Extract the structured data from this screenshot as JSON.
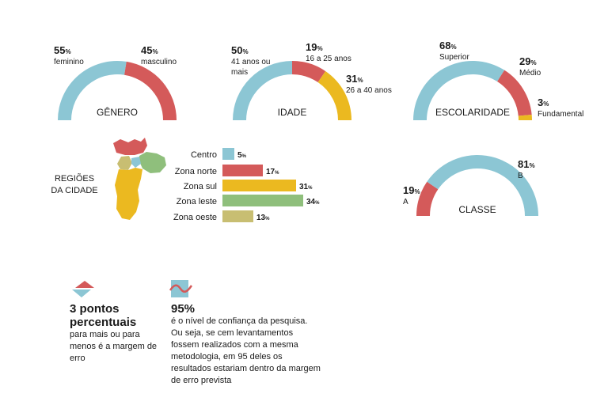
{
  "colors": {
    "blue": "#8cc6d4",
    "red": "#d45a5a",
    "yellow": "#ebb920",
    "green": "#8fbf7c",
    "olive": "#c8be72",
    "gray": "#d6d6d6"
  },
  "chart_data": [
    {
      "type": "pie",
      "title": "GÊNERO",
      "slices": [
        {
          "label": "feminino",
          "value": 55,
          "value_label": "55%",
          "color": "#8cc6d4"
        },
        {
          "label": "masculino",
          "value": 45,
          "value_label": "45%",
          "color": "#d45a5a"
        }
      ]
    },
    {
      "type": "pie",
      "title": "IDADE",
      "slices": [
        {
          "label": "41 anos ou mais",
          "value": 50,
          "value_label": "50%",
          "color": "#8cc6d4"
        },
        {
          "label": "16 a 25 anos",
          "value": 19,
          "value_label": "19%",
          "color": "#d45a5a"
        },
        {
          "label": "26 a 40 anos",
          "value": 31,
          "value_label": "31%",
          "color": "#ebb920"
        }
      ]
    },
    {
      "type": "pie",
      "title": "ESCOLARIDADE",
      "slices": [
        {
          "label": "Superior",
          "value": 68,
          "value_label": "68%",
          "color": "#8cc6d4"
        },
        {
          "label": "Médio",
          "value": 29,
          "value_label": "29%",
          "color": "#d45a5a"
        },
        {
          "label": "Fundamental",
          "value": 3,
          "value_label": "3%",
          "color": "#ebb920"
        }
      ]
    },
    {
      "type": "pie",
      "title": "CLASSE",
      "slices": [
        {
          "label": "A",
          "value": 19,
          "value_label": "19%",
          "color": "#d45a5a"
        },
        {
          "label": "B",
          "value": 81,
          "value_label": "81%",
          "color": "#8cc6d4"
        }
      ]
    },
    {
      "type": "bar",
      "title": "REGIÕES DA CIDADE",
      "categories": [
        "Centro",
        "Zona norte",
        "Zona sul",
        "Zona leste",
        "Zona oeste"
      ],
      "values": [
        5,
        17,
        31,
        34,
        13
      ],
      "value_labels": [
        "5%",
        "17%",
        "31%",
        "34%",
        "13%"
      ],
      "colors": [
        "#8cc6d4",
        "#d45a5a",
        "#ebb920",
        "#8fbf7c",
        "#c8be72"
      ]
    }
  ],
  "notes": {
    "margin": {
      "title": "3 pontos percentuais",
      "text": "para mais ou para menos é a margem de erro"
    },
    "confidence": {
      "title": "95%",
      "text": "é o nível de confiança da pesquisa. Ou seja, se cem levantamentos fossem realizados com a mesma metodologia, em 95 deles os resultados estariam dentro da margem de erro prevista"
    }
  }
}
